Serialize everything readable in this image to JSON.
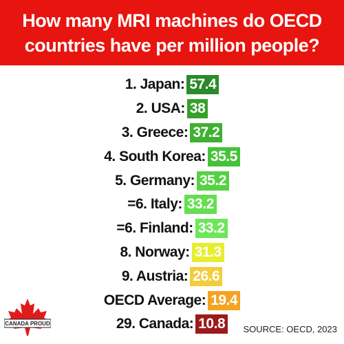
{
  "header": {
    "title": "How many MRI machines do OECD countries have per million people?"
  },
  "items": [
    {
      "label": "1. Japan:",
      "value": 57.4,
      "color": "#2b8a2b"
    },
    {
      "label": "2. USA:",
      "value": 38,
      "color": "#36a02a"
    },
    {
      "label": "3. Greece:",
      "value": 37.2,
      "color": "#3fb02f"
    },
    {
      "label": "4. South Korea:",
      "value": 35.5,
      "color": "#46c238"
    },
    {
      "label": "5. Germany:",
      "value": 35.2,
      "color": "#55d244"
    },
    {
      "label": "=6. Italy:",
      "value": 33.2,
      "color": "#63df50"
    },
    {
      "label": "=6. Finland:",
      "value": 33.2,
      "color": "#6ee65a"
    },
    {
      "label": "8. Norway:",
      "value": 31.3,
      "color": "#e6ee2e"
    },
    {
      "label": "9. Austria:",
      "value": 26.6,
      "color": "#f3cd3c"
    },
    {
      "label": "OECD Average:",
      "value": 19.4,
      "color": "#f4a423"
    },
    {
      "label": "29. Canada:",
      "value": 10.8,
      "color": "#9c1b1b"
    }
  ],
  "logo": {
    "text": "CANADA PROUD"
  },
  "source": "SOURCE: OECD, 2023"
}
